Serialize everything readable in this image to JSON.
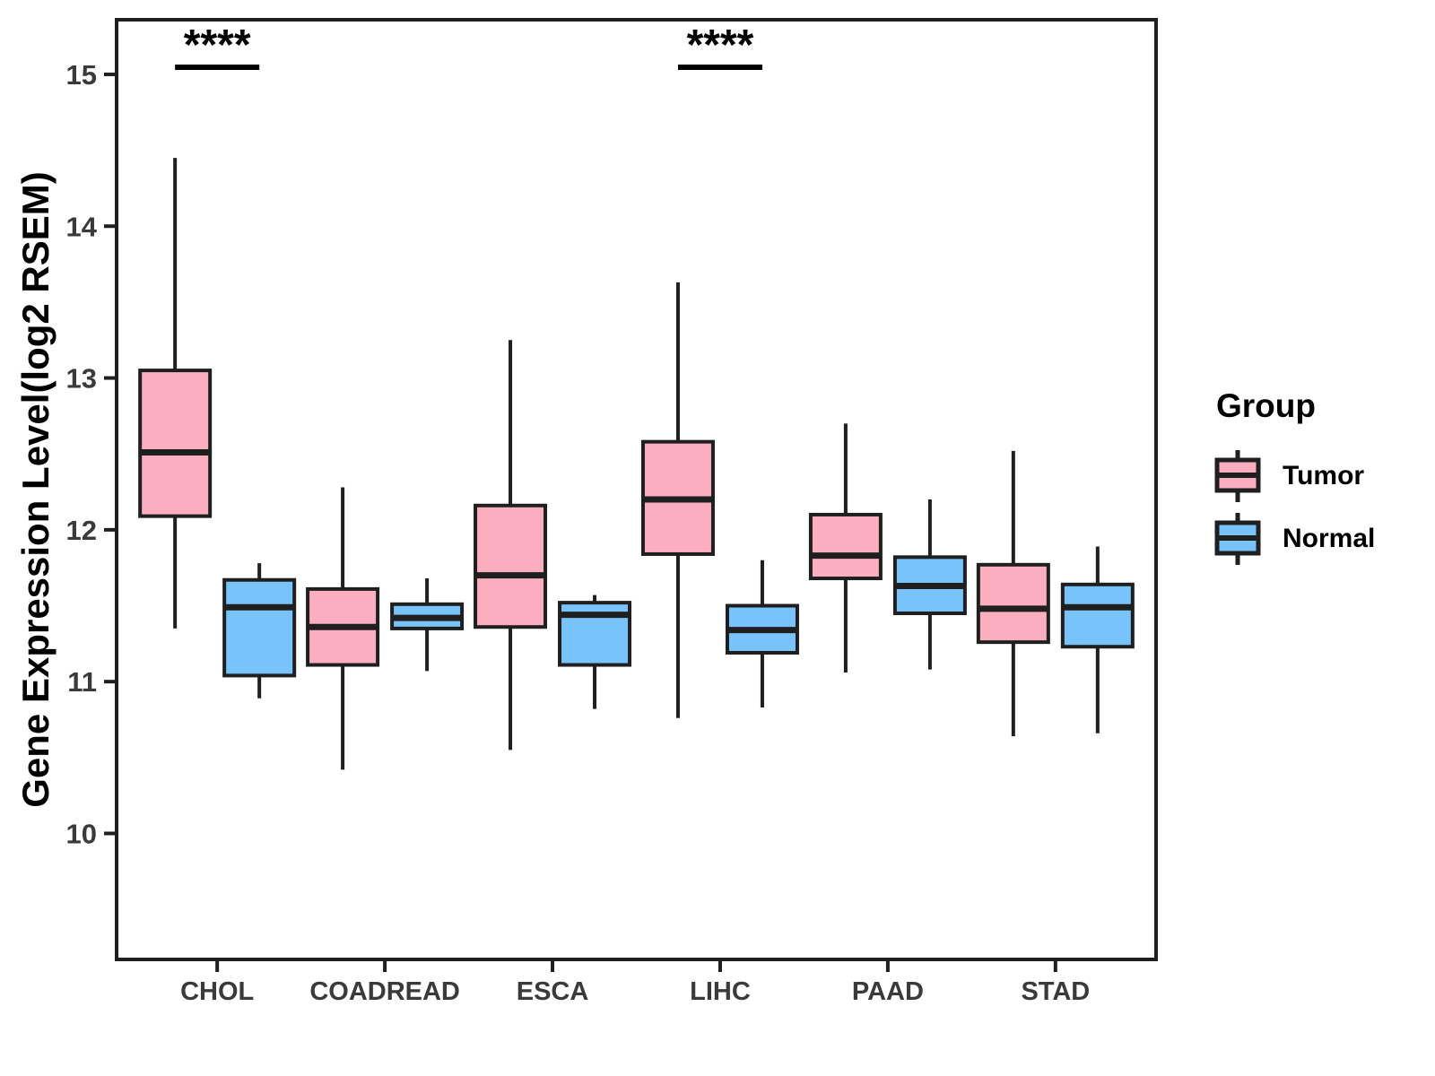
{
  "chart_data": {
    "type": "boxplot",
    "title": "",
    "xlabel": "",
    "ylabel": "Gene Expression Level(log2 RSEM)",
    "categories": [
      "CHOL",
      "COADREAD",
      "ESCA",
      "LIHC",
      "PAAD",
      "STAD"
    ],
    "y_ticks": [
      10,
      11,
      12,
      13,
      14,
      15
    ],
    "ylim": [
      9.17,
      15.36
    ],
    "grid": false,
    "legend": {
      "title": "Group",
      "position": "right",
      "entries": [
        {
          "label": "Tumor",
          "color": "#FBAEC0"
        },
        {
          "label": "Normal",
          "color": "#78C3FA"
        }
      ]
    },
    "series": [
      {
        "name": "Tumor",
        "color": "#FBAEC0",
        "data": [
          {
            "category": "CHOL",
            "min": 11.35,
            "q1": 12.09,
            "median": 12.51,
            "q3": 13.05,
            "max": 14.45
          },
          {
            "category": "COADREAD",
            "min": 10.42,
            "q1": 11.11,
            "median": 11.36,
            "q3": 11.61,
            "max": 12.28
          },
          {
            "category": "ESCA",
            "min": 10.55,
            "q1": 11.36,
            "median": 11.7,
            "q3": 12.16,
            "max": 13.25
          },
          {
            "category": "LIHC",
            "min": 10.76,
            "q1": 11.84,
            "median": 12.2,
            "q3": 12.58,
            "max": 13.63
          },
          {
            "category": "PAAD",
            "min": 11.06,
            "q1": 11.68,
            "median": 11.83,
            "q3": 12.1,
            "max": 12.7
          },
          {
            "category": "STAD",
            "min": 10.64,
            "q1": 11.26,
            "median": 11.48,
            "q3": 11.77,
            "max": 12.52
          }
        ]
      },
      {
        "name": "Normal",
        "color": "#78C3FA",
        "data": [
          {
            "category": "CHOL",
            "min": 10.89,
            "q1": 11.04,
            "median": 11.49,
            "q3": 11.67,
            "max": 11.78
          },
          {
            "category": "COADREAD",
            "min": 11.07,
            "q1": 11.35,
            "median": 11.42,
            "q3": 11.51,
            "max": 11.68
          },
          {
            "category": "ESCA",
            "min": 10.82,
            "q1": 11.11,
            "median": 11.44,
            "q3": 11.52,
            "max": 11.57
          },
          {
            "category": "LIHC",
            "min": 10.83,
            "q1": 11.19,
            "median": 11.34,
            "q3": 11.5,
            "max": 11.8
          },
          {
            "category": "PAAD",
            "min": 11.08,
            "q1": 11.45,
            "median": 11.63,
            "q3": 11.82,
            "max": 12.2
          },
          {
            "category": "STAD",
            "min": 10.66,
            "q1": 11.23,
            "median": 11.49,
            "q3": 11.64,
            "max": 11.89
          }
        ]
      }
    ],
    "annotations": [
      {
        "category": "CHOL",
        "label": "****"
      },
      {
        "category": "LIHC",
        "label": "****"
      }
    ]
  },
  "style_colors": {
    "box_border": "#1F1F1F",
    "axis_line": "#1F1F1F",
    "tick_label": "#3A3A3A",
    "annotation": "#000000"
  }
}
